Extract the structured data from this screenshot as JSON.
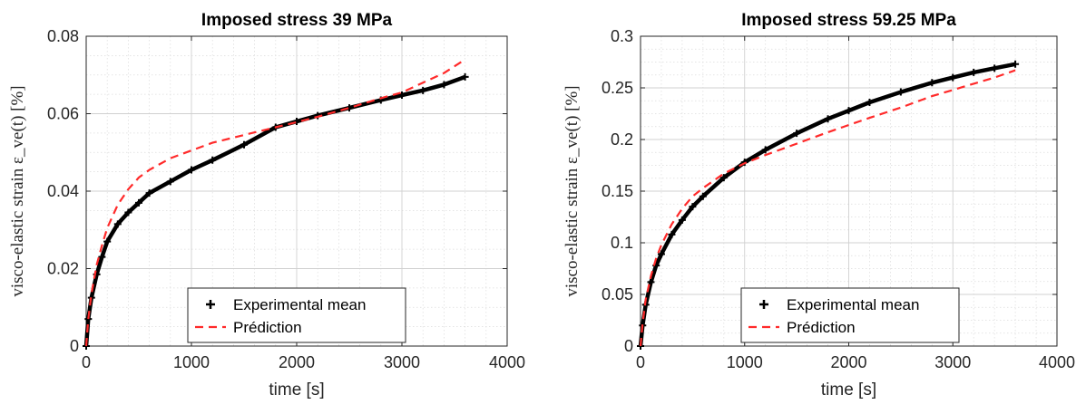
{
  "colors": {
    "experimental": "#000000",
    "prediction": "#ff2a2a",
    "grid": "#dcdcdc",
    "axis": "#262626"
  },
  "chart_data": [
    {
      "type": "line",
      "title": "Imposed stress 39 MPa",
      "xlabel": "time [s]",
      "ylabel": "visco-elastic strain ε_ve(t) [%]",
      "xlim": [
        0,
        4000
      ],
      "ylim": [
        0,
        0.08
      ],
      "xticks": [
        "0",
        "1000",
        "2000",
        "3000",
        "4000"
      ],
      "yticks": [
        "0",
        "0.02",
        "0.04",
        "0.06",
        "0.08"
      ],
      "grid": true,
      "legend_position": "bottom-center",
      "series": [
        {
          "name": "Experimental mean",
          "style": "markers-plus",
          "x": [
            0,
            20,
            50,
            100,
            150,
            200,
            300,
            400,
            500,
            600,
            800,
            1000,
            1200,
            1500,
            1800,
            2000,
            2200,
            2500,
            2800,
            3000,
            3200,
            3400,
            3600
          ],
          "y": [
            0,
            0.007,
            0.0125,
            0.0185,
            0.023,
            0.027,
            0.0315,
            0.0345,
            0.037,
            0.0395,
            0.0425,
            0.0455,
            0.048,
            0.052,
            0.0565,
            0.058,
            0.0595,
            0.0615,
            0.0635,
            0.0648,
            0.066,
            0.0675,
            0.0695
          ]
        },
        {
          "name": "Prédiction",
          "style": "dashed",
          "x": [
            0,
            20,
            50,
            100,
            150,
            200,
            300,
            400,
            500,
            600,
            800,
            1000,
            1200,
            1500,
            1800,
            2000,
            2200,
            2500,
            2800,
            3000,
            3200,
            3400,
            3600
          ],
          "y": [
            0,
            0.007,
            0.0135,
            0.021,
            0.026,
            0.0305,
            0.0365,
            0.0405,
            0.0435,
            0.0455,
            0.0485,
            0.0505,
            0.0525,
            0.0545,
            0.0565,
            0.0578,
            0.0592,
            0.0615,
            0.064,
            0.0655,
            0.068,
            0.0705,
            0.074
          ]
        }
      ]
    },
    {
      "type": "line",
      "title": "Imposed stress 59.25 MPa",
      "xlabel": "time [s]",
      "ylabel": "visco-elastic strain ε_ve(t) [%]",
      "xlim": [
        0,
        4000
      ],
      "ylim": [
        0,
        0.3
      ],
      "xticks": [
        "0",
        "1000",
        "2000",
        "3000",
        "4000"
      ],
      "yticks": [
        "0",
        "0.05",
        "0.1",
        "0.15",
        "0.2",
        "0.25",
        "0.3"
      ],
      "grid": true,
      "legend_position": "bottom-center",
      "series": [
        {
          "name": "Experimental mean",
          "style": "markers-plus",
          "x": [
            0,
            20,
            50,
            100,
            150,
            200,
            300,
            400,
            500,
            600,
            800,
            1000,
            1200,
            1500,
            1800,
            2000,
            2200,
            2500,
            2800,
            3000,
            3200,
            3400,
            3600
          ],
          "y": [
            0,
            0.02,
            0.04,
            0.062,
            0.078,
            0.089,
            0.108,
            0.122,
            0.135,
            0.145,
            0.163,
            0.178,
            0.19,
            0.206,
            0.22,
            0.228,
            0.236,
            0.246,
            0.255,
            0.26,
            0.265,
            0.269,
            0.273
          ]
        },
        {
          "name": "Prédiction",
          "style": "dashed",
          "x": [
            0,
            20,
            50,
            100,
            150,
            200,
            300,
            400,
            500,
            600,
            800,
            1000,
            1200,
            1500,
            1800,
            2000,
            2200,
            2500,
            2800,
            3000,
            3200,
            3400,
            3600
          ],
          "y": [
            0,
            0.022,
            0.045,
            0.068,
            0.085,
            0.098,
            0.118,
            0.133,
            0.145,
            0.153,
            0.167,
            0.177,
            0.185,
            0.196,
            0.207,
            0.214,
            0.221,
            0.231,
            0.242,
            0.248,
            0.254,
            0.26,
            0.267
          ]
        }
      ]
    }
  ]
}
